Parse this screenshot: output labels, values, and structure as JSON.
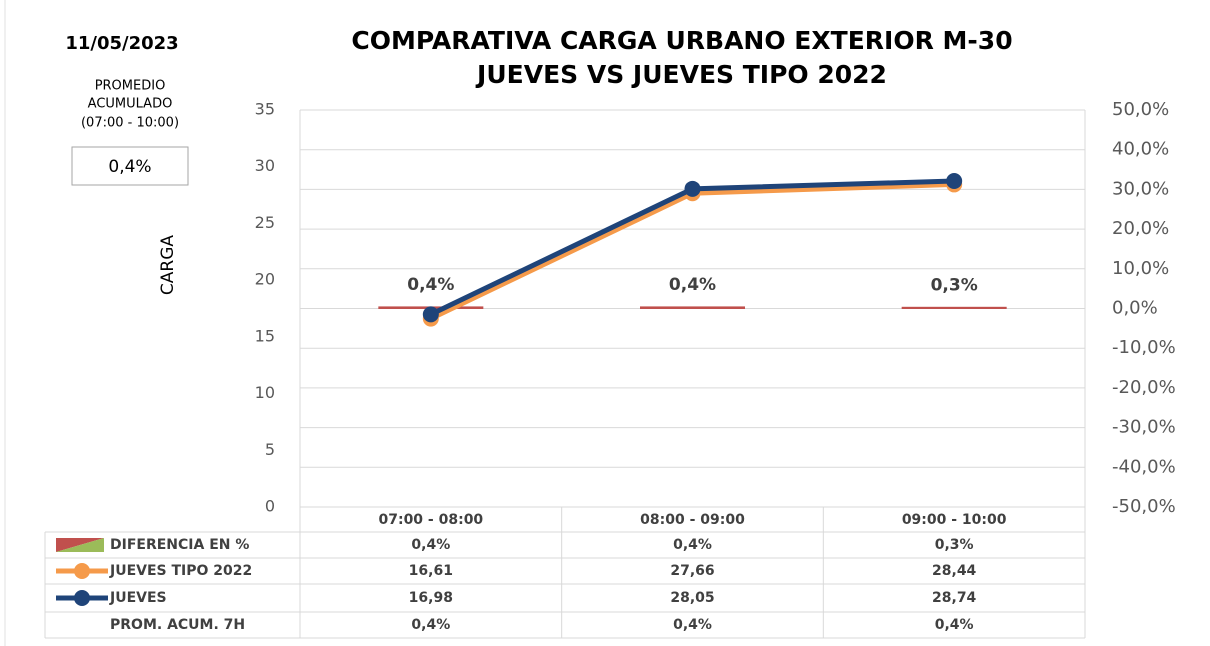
{
  "chart_data": {
    "type": "combo",
    "date": "11/05/2023",
    "title": [
      "COMPARATIVA CARGA URBANO EXTERIOR M-30",
      "JUEVES VS JUEVES TIPO 2022"
    ],
    "promedio_label": [
      "PROMEDIO",
      "ACUMULADO",
      "(07:00 - 10:00)"
    ],
    "promedio_value": "0,4%",
    "y_label": "CARGA",
    "categories": [
      "07:00 - 08:00",
      "08:00 - 09:00",
      "09:00 - 10:00"
    ],
    "series": [
      {
        "name": "DIFERENCIA EN %",
        "type": "bar",
        "axis": "y2",
        "color": "#c0504d",
        "values": [
          0.4,
          0.4,
          0.3
        ],
        "value_labels": [
          "0,4%",
          "0,4%",
          "0,3%"
        ]
      },
      {
        "name": "JUEVES TIPO 2022",
        "type": "line",
        "color": "#f59a4a",
        "values": [
          16.61,
          27.66,
          28.44
        ],
        "value_labels": [
          "16,61",
          "27,66",
          "28,44"
        ]
      },
      {
        "name": "JUEVES",
        "type": "line",
        "color": "#1f4479",
        "values": [
          16.98,
          28.05,
          28.74
        ],
        "value_labels": [
          "16,98",
          "28,05",
          "28,74"
        ]
      }
    ],
    "summary_row": {
      "name": "PROM. ACUM. 7H",
      "values": [
        "0,4%",
        "0,4%",
        "0,4%"
      ]
    },
    "ylim": [
      0,
      35
    ],
    "yticks": [
      0,
      5,
      10,
      15,
      20,
      25,
      30,
      35
    ],
    "y2lim": [
      -50,
      50
    ],
    "y2ticks": [
      {
        "value": -50,
        "label": "-50,0%"
      },
      {
        "value": -40,
        "label": "-40,0%"
      },
      {
        "value": -30,
        "label": "-30,0%"
      },
      {
        "value": -20,
        "label": "-20,0%"
      },
      {
        "value": -10,
        "label": "-10,0%"
      },
      {
        "value": 0,
        "label": "0,0%"
      },
      {
        "value": 10,
        "label": "10,0%"
      },
      {
        "value": 20,
        "label": "20,0%"
      },
      {
        "value": 30,
        "label": "30,0%"
      },
      {
        "value": 40,
        "label": "40,0%"
      },
      {
        "value": 50,
        "label": "50,0%"
      }
    ],
    "grid": true
  }
}
